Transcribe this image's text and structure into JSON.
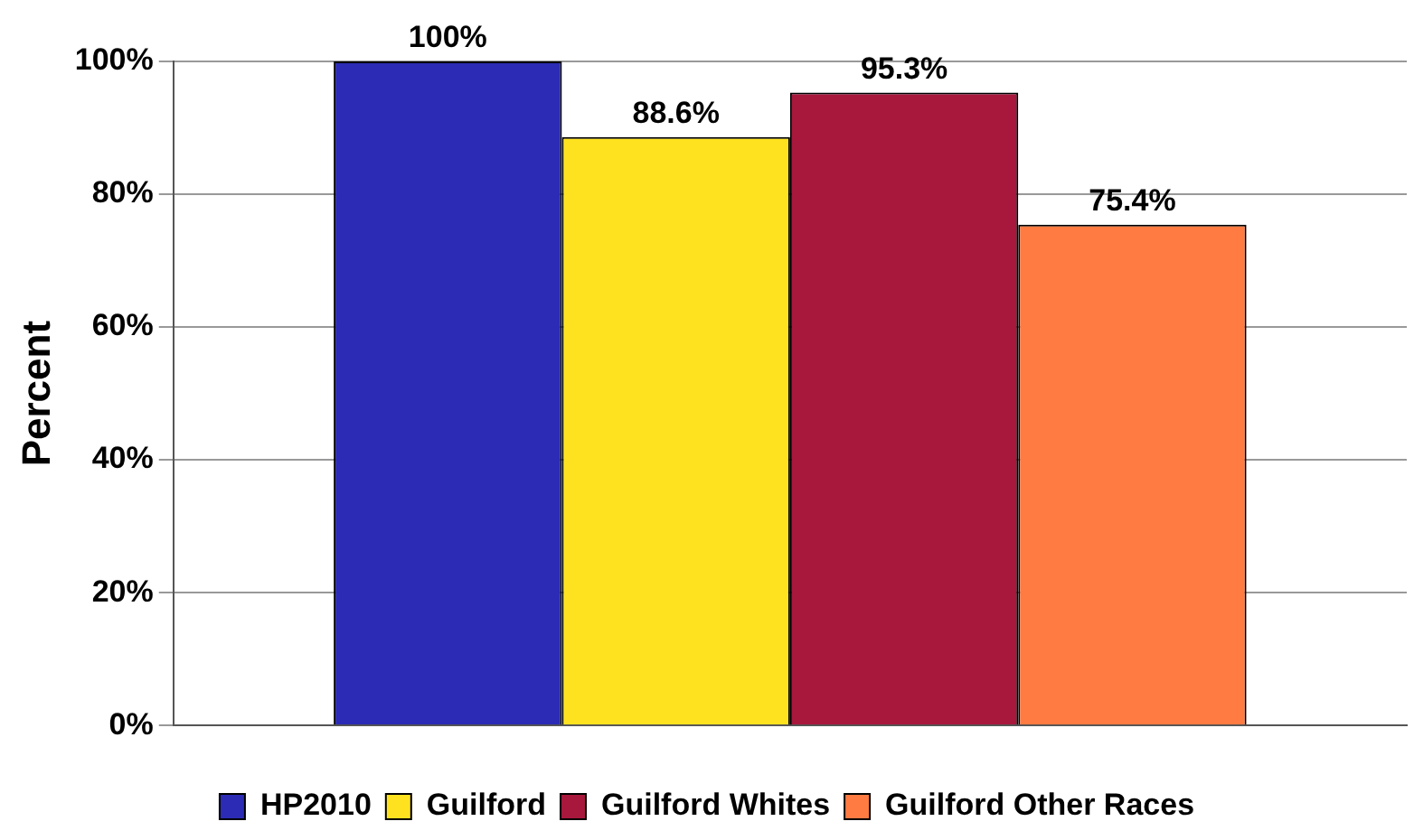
{
  "chart_data": {
    "type": "bar",
    "ylabel": "Percent",
    "categories": [
      null
    ],
    "series": [
      {
        "name": "HP2010",
        "color": "#2b2bb5",
        "values": [
          100
        ]
      },
      {
        "name": "Guilford",
        "color": "#ffe21f",
        "values": [
          88.6
        ]
      },
      {
        "name": "Guilford Whites",
        "color": "#a8173c",
        "values": [
          95.3
        ]
      },
      {
        "name": "Guilford Other Races",
        "color": "#ff7b42",
        "values": [
          75.4
        ]
      }
    ],
    "value_labels": [
      "100%",
      "88.6%",
      "95.3%",
      "75.4%"
    ],
    "ylim": [
      0,
      100
    ],
    "yticks": [
      {
        "value": 0,
        "label": "0%"
      },
      {
        "value": 20,
        "label": "20%"
      },
      {
        "value": 40,
        "label": "40%"
      },
      {
        "value": 60,
        "label": "60%"
      },
      {
        "value": 80,
        "label": "80%"
      },
      {
        "value": 100,
        "label": "100%"
      }
    ],
    "grid": "y",
    "legend": "bottom"
  }
}
